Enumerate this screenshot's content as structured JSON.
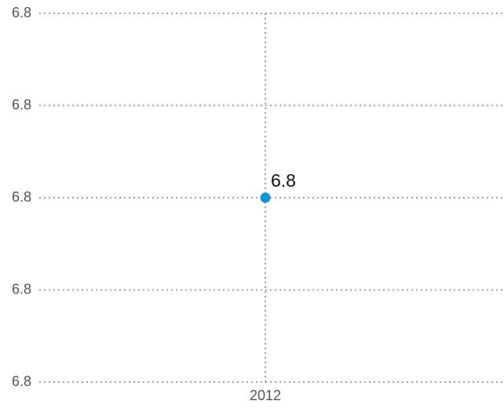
{
  "chart_data": {
    "type": "line",
    "categories": [
      "2012"
    ],
    "values": [
      6.8
    ],
    "color": "#0f94d2",
    "ylim": [
      6.78,
      6.82
    ],
    "yticks": [
      {
        "value": 6.78,
        "label": "6.8"
      },
      {
        "value": 6.79,
        "label": "6.8"
      },
      6.8,
      {
        "value": 6.81,
        "label": "6.8"
      },
      {
        "value": 6.82,
        "label": "6.8"
      }
    ],
    "grid": true,
    "data_labels": true
  }
}
